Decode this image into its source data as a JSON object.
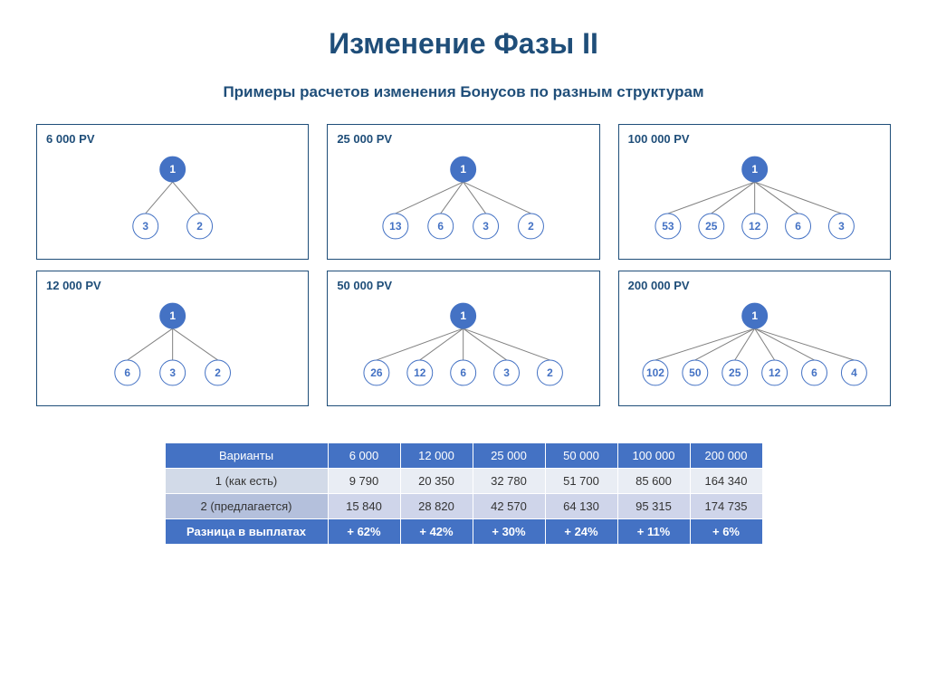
{
  "colors": {
    "title": "#1f4e79",
    "subtitle": "#1f4e79",
    "card_border": "#1f4e79",
    "card_label": "#1f4e79",
    "root_fill": "#4472c4",
    "root_text": "#ffffff",
    "child_fill": "#ffffff",
    "child_stroke": "#4472c4",
    "child_text": "#4472c4",
    "edge": "#808080",
    "table_header_bg": "#4472c4",
    "table_row_a_bg": "#e9edf4",
    "table_row_a_label_bg": "#d2dae8",
    "table_row_b_bg": "#cfd5ea",
    "table_row_b_label_bg": "#b4c0dc",
    "table_footer_bg": "#4472c4",
    "table_text": "#333333"
  },
  "title": "Изменение Фазы II",
  "subtitle": "Примеры расчетов изменения Бонусов по разным структурам",
  "trees": [
    {
      "label": "6 000 PV",
      "root": "1",
      "children": [
        "3",
        "2"
      ]
    },
    {
      "label": "25 000 PV",
      "root": "1",
      "children": [
        "13",
        "6",
        "3",
        "2"
      ]
    },
    {
      "label": "100 000 PV",
      "root": "1",
      "children": [
        "53",
        "25",
        "12",
        "6",
        "3"
      ]
    },
    {
      "label": "12 000 PV",
      "root": "1",
      "children": [
        "6",
        "3",
        "2"
      ]
    },
    {
      "label": "50 000 PV",
      "root": "1",
      "children": [
        "26",
        "12",
        "6",
        "3",
        "2"
      ]
    },
    {
      "label": "200 000 PV",
      "root": "1",
      "children": [
        "102",
        "50",
        "25",
        "12",
        "6",
        "4"
      ]
    }
  ],
  "node_radius_root": 14,
  "node_radius_child": 14,
  "table": {
    "header": [
      "Варианты",
      "6 000",
      "12 000",
      "25 000",
      "50 000",
      "100 000",
      "200 000"
    ],
    "rows": [
      {
        "label": "1 (как есть)",
        "vals": [
          "9 790",
          "20 350",
          "32 780",
          "51 700",
          "85 600",
          "164 340"
        ]
      },
      {
        "label": "2 (предлагается)",
        "vals": [
          "15 840",
          "28 820",
          "42 570",
          "64 130",
          "95 315",
          "174 735"
        ]
      }
    ],
    "footer": {
      "label": "Разница в выплатах",
      "vals": [
        "+ 62%",
        "+ 42%",
        "+ 30%",
        "+ 24%",
        "+ 11%",
        "+ 6%"
      ]
    }
  }
}
